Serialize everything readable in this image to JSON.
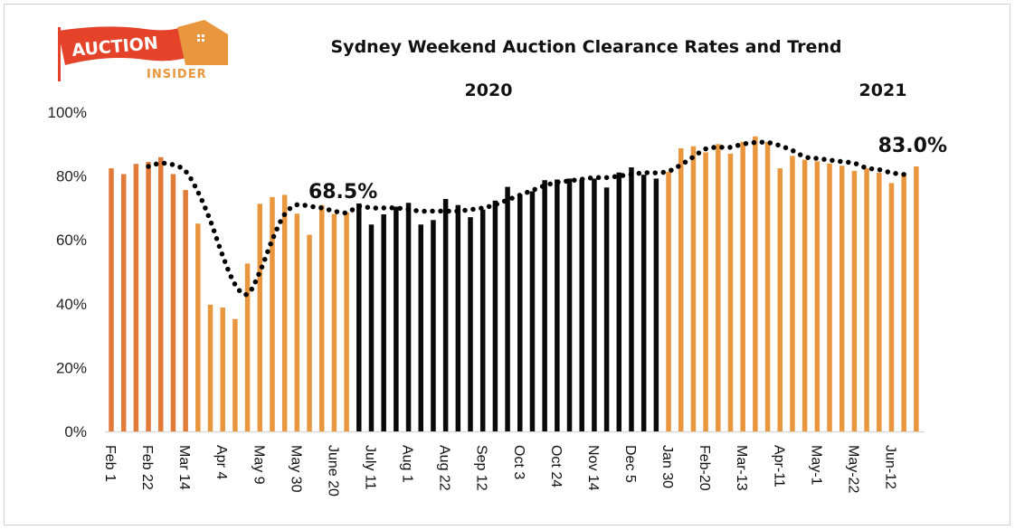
{
  "logo": {
    "line1": "AUCTION",
    "line2": "INSIDER"
  },
  "chart_data": {
    "type": "bar",
    "title": "Sydney Weekend Auction Clearance Rates and Trend",
    "year_labels": [
      "2020",
      "2021"
    ],
    "ylim": [
      0,
      100
    ],
    "yticks": [
      "0%",
      "20%",
      "40%",
      "60%",
      "80%",
      "100%"
    ],
    "grid": false,
    "tick_labels": [
      "Feb 1",
      "Feb 22",
      "Mar 14",
      "Apr 4",
      "May 9",
      "May 30",
      "June 20",
      "July 11",
      "Aug 1",
      "Aug 22",
      "Sep 12",
      "Oct 3",
      "Oct 24",
      "Nov 14",
      "Dec 5",
      "Jan 30",
      "Feb-20",
      "Mar-13",
      "Apr-11",
      "May-1",
      "May-22",
      "Jun-12"
    ],
    "tick_every": 3,
    "values": [
      82.4,
      80.6,
      83.8,
      84.4,
      85.9,
      80.6,
      75.6,
      65.1,
      39.7,
      38.8,
      35.2,
      52.6,
      71.3,
      73.4,
      74.1,
      68.2,
      61.6,
      70.9,
      68.1,
      68.6,
      71.4,
      64.8,
      68.0,
      70.4,
      71.6,
      64.8,
      66.2,
      72.8,
      70.9,
      67.1,
      69.5,
      72.3,
      76.6,
      74.2,
      75.2,
      78.7,
      78.9,
      79.2,
      78.9,
      79.2,
      76.4,
      81.1,
      82.7,
      80.4,
      79.2,
      81.3,
      88.7,
      89.3,
      87.4,
      90.0,
      87.0,
      90.7,
      92.4,
      90.7,
      82.4,
      86.3,
      85.1,
      84.6,
      83.9,
      83.2,
      81.6,
      82.4,
      81.0,
      77.8,
      81.0,
      83.0
    ],
    "bar_colors": {
      "early": "#E07B39",
      "orange": "#E8973E",
      "black": "#0A0A0A"
    },
    "black_range": [
      21,
      45
    ],
    "early_range": [
      1,
      7
    ],
    "trend": {
      "style": "dotted",
      "start_index": 4,
      "values": [
        83,
        84,
        83.5,
        81.5,
        75,
        66,
        55,
        46,
        43,
        50,
        60,
        68,
        71,
        70.5,
        70,
        69,
        68.5,
        70.5,
        70,
        70,
        70,
        69.5,
        69,
        69,
        69,
        69,
        69.5,
        70,
        71,
        72.5,
        74,
        75.5,
        77,
        78,
        78.5,
        79,
        79.5,
        79.5,
        80,
        80.5,
        81,
        81,
        81.5,
        83.5,
        86,
        88.5,
        89,
        89,
        90,
        90.5,
        90.5,
        89.5,
        88,
        86,
        85.5,
        85,
        84.5,
        84,
        82.5,
        82,
        81,
        80.5
      ]
    },
    "annotations": [
      {
        "text": "68.5%",
        "index": 20
      },
      {
        "text": "83.0%",
        "index": 66
      }
    ]
  }
}
